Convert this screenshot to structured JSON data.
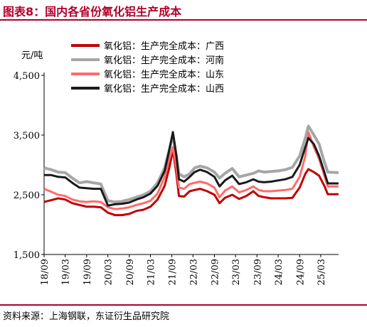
{
  "header": {
    "title": "图表8：国内各省份氧化铝生产成本"
  },
  "footer": {
    "source": "资料来源：上海钢联，东证衍生品研究院"
  },
  "colors": {
    "guangxi": "#c00000",
    "henan": "#a6a6a6",
    "shandong": "#ff6b6b",
    "shanxi": "#1a1a1a",
    "accent": "#b2002a"
  },
  "chart_data": {
    "type": "line",
    "title": "图表8：国内各省份氧化铝生产成本",
    "unit_label": "元/吨",
    "xlabel": "",
    "ylabel": "元/吨",
    "ylim": [
      1500,
      4500
    ],
    "yticks": [
      "1,500",
      "2,500",
      "3,500",
      "4,500"
    ],
    "ytick_values": [
      1500,
      2500,
      3500,
      4500
    ],
    "xlim": [
      "2018-09",
      "2025-08"
    ],
    "xticks": [
      "18/09",
      "19/03",
      "19/09",
      "20/03",
      "20/09",
      "21/03",
      "21/09",
      "22/03",
      "22/09",
      "23/03",
      "23/09",
      "24/03",
      "24/09",
      "25/03"
    ],
    "grid": false,
    "legend_position": "top",
    "series": [
      {
        "name": "氧化铝：生产完全成本：广西",
        "color_key": "guangxi",
        "width": 3,
        "points": [
          [
            "2018-09-01",
            2380
          ],
          [
            "2018-11-01",
            2410
          ],
          [
            "2019-01-01",
            2440
          ],
          [
            "2019-03-01",
            2420
          ],
          [
            "2019-05-01",
            2360
          ],
          [
            "2019-07-01",
            2330
          ],
          [
            "2019-09-01",
            2300
          ],
          [
            "2019-11-01",
            2300
          ],
          [
            "2020-01-01",
            2290
          ],
          [
            "2020-03-01",
            2200
          ],
          [
            "2020-05-01",
            2160
          ],
          [
            "2020-07-01",
            2160
          ],
          [
            "2020-09-01",
            2180
          ],
          [
            "2020-11-01",
            2230
          ],
          [
            "2021-01-01",
            2250
          ],
          [
            "2021-03-01",
            2300
          ],
          [
            "2021-05-01",
            2420
          ],
          [
            "2021-07-01",
            2650
          ],
          [
            "2021-08-10",
            2950
          ],
          [
            "2021-09-10",
            3250
          ],
          [
            "2021-10-10",
            2850
          ],
          [
            "2021-11-01",
            2480
          ],
          [
            "2021-12-15",
            2470
          ],
          [
            "2022-02-01",
            2560
          ],
          [
            "2022-03-15",
            2580
          ],
          [
            "2022-05-01",
            2600
          ],
          [
            "2022-07-01",
            2560
          ],
          [
            "2022-09-01",
            2500
          ],
          [
            "2022-10-15",
            2360
          ],
          [
            "2022-12-01",
            2450
          ],
          [
            "2023-02-01",
            2500
          ],
          [
            "2023-04-01",
            2430
          ],
          [
            "2023-06-01",
            2480
          ],
          [
            "2023-08-01",
            2560
          ],
          [
            "2023-09-15",
            2480
          ],
          [
            "2023-11-01",
            2460
          ],
          [
            "2024-01-01",
            2440
          ],
          [
            "2024-03-01",
            2440
          ],
          [
            "2024-05-01",
            2440
          ],
          [
            "2024-07-01",
            2450
          ],
          [
            "2024-09-01",
            2620
          ],
          [
            "2024-10-20",
            2850
          ],
          [
            "2024-11-15",
            2930
          ],
          [
            "2025-01-01",
            2880
          ],
          [
            "2025-02-15",
            2820
          ],
          [
            "2025-04-01",
            2650
          ],
          [
            "2025-05-01",
            2510
          ],
          [
            "2025-08-01",
            2510
          ]
        ]
      },
      {
        "name": "氧化铝：生产完全成本：河南",
        "color_key": "henan",
        "width": 4,
        "points": [
          [
            "2018-09-01",
            2950
          ],
          [
            "2018-11-01",
            2920
          ],
          [
            "2019-01-01",
            2880
          ],
          [
            "2019-03-01",
            2870
          ],
          [
            "2019-05-01",
            2780
          ],
          [
            "2019-07-01",
            2700
          ],
          [
            "2019-09-01",
            2720
          ],
          [
            "2019-11-01",
            2700
          ],
          [
            "2020-01-01",
            2680
          ],
          [
            "2020-03-01",
            2400
          ],
          [
            "2020-05-01",
            2380
          ],
          [
            "2020-07-01",
            2390
          ],
          [
            "2020-09-01",
            2420
          ],
          [
            "2020-11-01",
            2460
          ],
          [
            "2021-01-01",
            2500
          ],
          [
            "2021-03-01",
            2560
          ],
          [
            "2021-05-01",
            2700
          ],
          [
            "2021-07-01",
            2950
          ],
          [
            "2021-08-10",
            3250
          ],
          [
            "2021-09-10",
            3500
          ],
          [
            "2021-10-10",
            3150
          ],
          [
            "2021-11-01",
            2850
          ],
          [
            "2021-12-15",
            2800
          ],
          [
            "2022-02-01",
            2850
          ],
          [
            "2022-03-15",
            2950
          ],
          [
            "2022-05-01",
            2980
          ],
          [
            "2022-07-01",
            2950
          ],
          [
            "2022-09-01",
            2880
          ],
          [
            "2022-10-15",
            2780
          ],
          [
            "2022-12-01",
            2860
          ],
          [
            "2023-02-01",
            2940
          ],
          [
            "2023-04-01",
            2800
          ],
          [
            "2023-06-01",
            2830
          ],
          [
            "2023-08-01",
            2860
          ],
          [
            "2023-09-15",
            2900
          ],
          [
            "2023-11-01",
            2880
          ],
          [
            "2024-01-01",
            2890
          ],
          [
            "2024-03-01",
            2900
          ],
          [
            "2024-05-01",
            2920
          ],
          [
            "2024-07-01",
            2960
          ],
          [
            "2024-09-01",
            3150
          ],
          [
            "2024-10-20",
            3450
          ],
          [
            "2024-11-15",
            3650
          ],
          [
            "2025-01-01",
            3500
          ],
          [
            "2025-02-15",
            3350
          ],
          [
            "2025-04-01",
            3050
          ],
          [
            "2025-05-01",
            2880
          ],
          [
            "2025-08-01",
            2870
          ]
        ]
      },
      {
        "name": "氧化铝：生产完全成本：山东",
        "color_key": "shandong",
        "width": 3,
        "points": [
          [
            "2018-09-01",
            2600
          ],
          [
            "2018-11-01",
            2550
          ],
          [
            "2019-01-01",
            2500
          ],
          [
            "2019-03-01",
            2480
          ],
          [
            "2019-05-01",
            2420
          ],
          [
            "2019-07-01",
            2390
          ],
          [
            "2019-09-01",
            2380
          ],
          [
            "2019-11-01",
            2390
          ],
          [
            "2020-01-01",
            2380
          ],
          [
            "2020-03-01",
            2290
          ],
          [
            "2020-05-01",
            2260
          ],
          [
            "2020-07-01",
            2270
          ],
          [
            "2020-09-01",
            2290
          ],
          [
            "2020-11-01",
            2330
          ],
          [
            "2021-01-01",
            2360
          ],
          [
            "2021-03-01",
            2400
          ],
          [
            "2021-05-01",
            2520
          ],
          [
            "2021-07-01",
            2800
          ],
          [
            "2021-08-10",
            3100
          ],
          [
            "2021-09-10",
            3300
          ],
          [
            "2021-10-10",
            2950
          ],
          [
            "2021-11-01",
            2620
          ],
          [
            "2021-12-15",
            2600
          ],
          [
            "2022-02-01",
            2680
          ],
          [
            "2022-03-15",
            2700
          ],
          [
            "2022-05-01",
            2720
          ],
          [
            "2022-07-01",
            2690
          ],
          [
            "2022-09-01",
            2620
          ],
          [
            "2022-10-15",
            2460
          ],
          [
            "2022-12-01",
            2570
          ],
          [
            "2023-02-01",
            2640
          ],
          [
            "2023-04-01",
            2540
          ],
          [
            "2023-06-01",
            2580
          ],
          [
            "2023-08-01",
            2640
          ],
          [
            "2023-09-15",
            2580
          ],
          [
            "2023-11-01",
            2560
          ],
          [
            "2024-01-01",
            2560
          ],
          [
            "2024-03-01",
            2570
          ],
          [
            "2024-05-01",
            2580
          ],
          [
            "2024-07-01",
            2600
          ],
          [
            "2024-09-01",
            2800
          ],
          [
            "2024-10-20",
            3150
          ],
          [
            "2024-11-15",
            3550
          ],
          [
            "2025-01-01",
            3300
          ],
          [
            "2025-02-15",
            3100
          ],
          [
            "2025-04-01",
            2820
          ],
          [
            "2025-05-01",
            2640
          ],
          [
            "2025-08-01",
            2640
          ]
        ]
      },
      {
        "name": "氧化铝：生产完全成本：山西",
        "color_key": "shanxi",
        "width": 3,
        "points": [
          [
            "2018-09-01",
            2830
          ],
          [
            "2018-11-01",
            2830
          ],
          [
            "2019-01-01",
            2800
          ],
          [
            "2019-03-01",
            2790
          ],
          [
            "2019-05-01",
            2700
          ],
          [
            "2019-07-01",
            2620
          ],
          [
            "2019-09-01",
            2610
          ],
          [
            "2019-11-01",
            2600
          ],
          [
            "2020-01-01",
            2600
          ],
          [
            "2020-03-01",
            2320
          ],
          [
            "2020-05-01",
            2340
          ],
          [
            "2020-07-01",
            2350
          ],
          [
            "2020-09-01",
            2370
          ],
          [
            "2020-11-01",
            2420
          ],
          [
            "2021-01-01",
            2460
          ],
          [
            "2021-03-01",
            2520
          ],
          [
            "2021-05-01",
            2650
          ],
          [
            "2021-07-01",
            2900
          ],
          [
            "2021-08-10",
            3250
          ],
          [
            "2021-09-10",
            3550
          ],
          [
            "2021-10-10",
            3150
          ],
          [
            "2021-11-01",
            2760
          ],
          [
            "2021-12-15",
            2720
          ],
          [
            "2022-02-01",
            2800
          ],
          [
            "2022-03-15",
            2880
          ],
          [
            "2022-05-01",
            2920
          ],
          [
            "2022-07-01",
            2880
          ],
          [
            "2022-09-01",
            2800
          ],
          [
            "2022-10-15",
            2640
          ],
          [
            "2022-12-01",
            2740
          ],
          [
            "2023-02-01",
            2820
          ],
          [
            "2023-04-01",
            2680
          ],
          [
            "2023-06-01",
            2710
          ],
          [
            "2023-08-01",
            2760
          ],
          [
            "2023-09-15",
            2720
          ],
          [
            "2023-11-01",
            2710
          ],
          [
            "2024-01-01",
            2720
          ],
          [
            "2024-03-01",
            2740
          ],
          [
            "2024-05-01",
            2760
          ],
          [
            "2024-07-01",
            2800
          ],
          [
            "2024-09-01",
            3000
          ],
          [
            "2024-10-20",
            3300
          ],
          [
            "2024-11-15",
            3450
          ],
          [
            "2025-01-01",
            3350
          ],
          [
            "2025-02-15",
            3150
          ],
          [
            "2025-04-01",
            2880
          ],
          [
            "2025-05-01",
            2690
          ],
          [
            "2025-08-01",
            2690
          ]
        ]
      }
    ]
  }
}
